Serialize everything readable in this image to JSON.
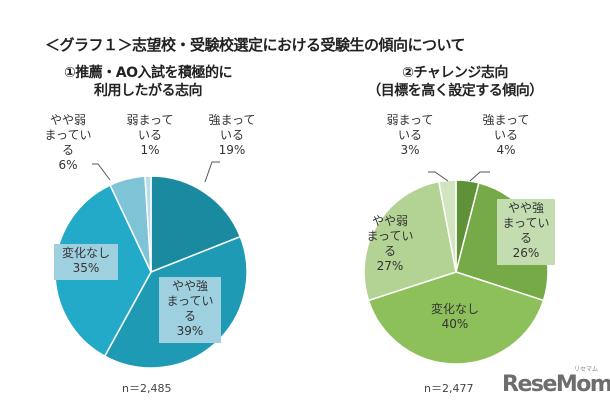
{
  "title": "＜グラフ１＞志望校・受験校選定における受験生の傾向について",
  "chart_data": [
    {
      "type": "pie",
      "title_lines": [
        "①推薦・AO入試を積極的に",
        "利用したがる志向"
      ],
      "n_label": "n＝2,485",
      "slices": [
        {
          "name": "強まっている",
          "label_lines": [
            "強まって",
            "いる"
          ],
          "value": 19,
          "pct": "19%",
          "color": "#1a8aa0"
        },
        {
          "name": "やや強まっている",
          "label_lines": [
            "やや強",
            "まってい",
            "る"
          ],
          "value": 39,
          "pct": "39%",
          "color": "#1e9ab4"
        },
        {
          "name": "変化なし",
          "label_lines": [
            "変化なし"
          ],
          "value": 35,
          "pct": "35%",
          "color": "#22aac8"
        },
        {
          "name": "やや弱まっている",
          "label_lines": [
            "やや弱",
            "まってい",
            "る"
          ],
          "value": 6,
          "pct": "6%",
          "color": "#7ec3d6"
        },
        {
          "name": "弱まっている",
          "label_lines": [
            "弱まって",
            "いる"
          ],
          "value": 1,
          "pct": "1%",
          "color": "#b8dce8"
        }
      ]
    },
    {
      "type": "pie",
      "title_lines": [
        "②チャレンジ志向",
        "（目標を高く設定する傾向）"
      ],
      "n_label": "n＝2,477",
      "slices": [
        {
          "name": "強まっている",
          "label_lines": [
            "強まって",
            "いる"
          ],
          "value": 4,
          "pct": "4%",
          "color": "#5e9138"
        },
        {
          "name": "やや強まっている",
          "label_lines": [
            "やや強",
            "まってい",
            "る"
          ],
          "value": 26,
          "pct": "26%",
          "color": "#76aa47"
        },
        {
          "name": "変化なし",
          "label_lines": [
            "変化なし"
          ],
          "value": 40,
          "pct": "40%",
          "color": "#8dc05a"
        },
        {
          "name": "やや弱まっている",
          "label_lines": [
            "やや弱",
            "まってい",
            "る"
          ],
          "value": 27,
          "pct": "27%",
          "color": "#b3d394"
        },
        {
          "name": "弱まっている",
          "label_lines": [
            "弱まって",
            "いる"
          ],
          "value": 3,
          "pct": "3%",
          "color": "#d2e5c0"
        }
      ]
    }
  ],
  "logo": {
    "text": "ReseMom",
    "kana": "リセマム"
  }
}
